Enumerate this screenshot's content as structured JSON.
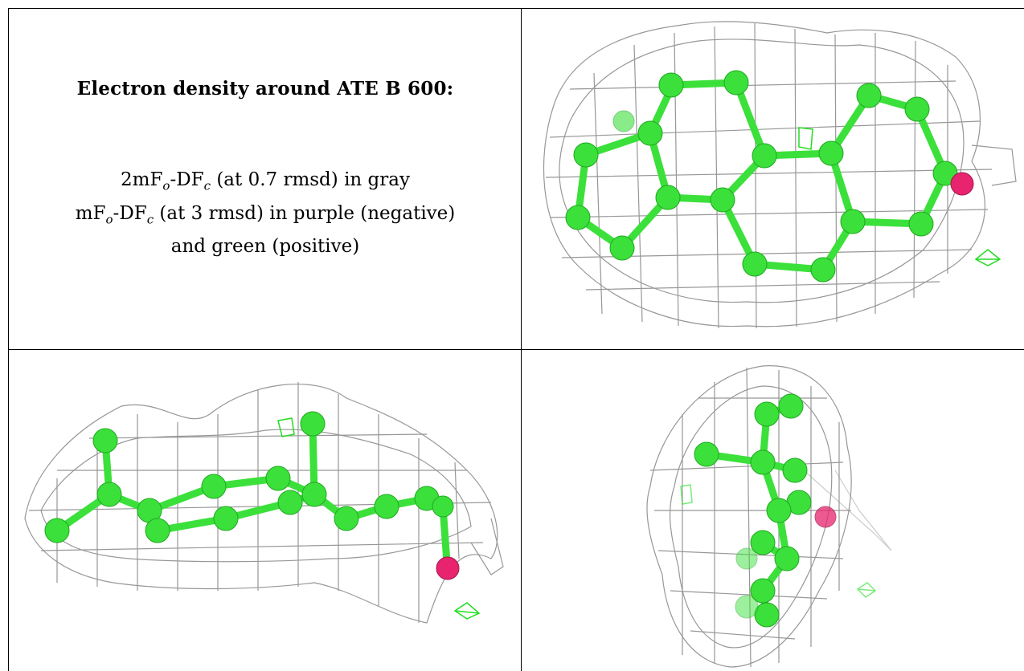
{
  "caption": {
    "title": "Electron density around ATE B 600:",
    "line1": {
      "pre": "2mF",
      "sub1": "o",
      "mid": "-DF",
      "sub2": "c",
      "post": " (at 0.7 rmsd) in gray"
    },
    "line2": {
      "pre": "mF",
      "sub1": "o",
      "mid": "-DF",
      "sub2": "c",
      "post": " (at 3 rmsd) in purple (negative)"
    },
    "line3": "and green (positive)"
  },
  "colors": {
    "mesh_gray": "#8c8c8c",
    "atom_carbon_green": "#3be03b",
    "atom_oxygen": "#e8246e",
    "positive_density_green": "#22dd22",
    "border": "#000000"
  },
  "panels": [
    {
      "id": "view-top",
      "content": "ligand-density-view"
    },
    {
      "id": "view-side",
      "content": "ligand-density-view"
    },
    {
      "id": "view-end",
      "content": "ligand-density-view"
    }
  ]
}
